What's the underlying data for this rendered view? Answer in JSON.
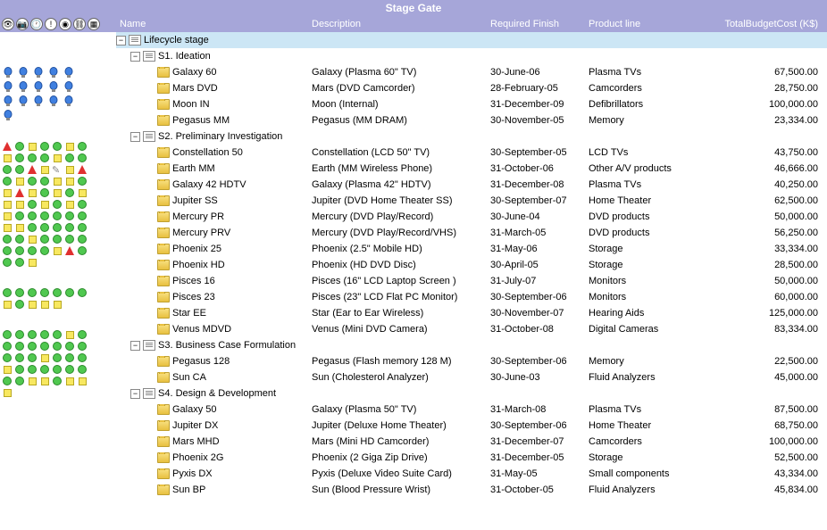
{
  "title": "Stage Gate",
  "columns": {
    "name": "Name",
    "description": "Description",
    "finish": "Required Finish",
    "line": "Product line",
    "budget": "TotalBudgetCost (K$)"
  },
  "tree": {
    "root": "Lifecycle stage",
    "stages": [
      {
        "name": "S1. Ideation",
        "items": [
          {
            "name": "Galaxy 60",
            "desc": "Galaxy (Plasma 60\" TV)",
            "finish": "30-June-06",
            "line": "Plasma TVs",
            "budget": "67,500.00"
          },
          {
            "name": "Mars DVD",
            "desc": "Mars (DVD Camcorder)",
            "finish": "28-February-05",
            "line": "Camcorders",
            "budget": "28,750.00"
          },
          {
            "name": "Moon IN",
            "desc": "Moon (Internal)",
            "finish": "31-December-09",
            "line": "Defibrillators",
            "budget": "100,000.00"
          },
          {
            "name": "Pegasus MM",
            "desc": "Pegasus (MM DRAM)",
            "finish": "30-November-05",
            "line": "Memory",
            "budget": "23,334.00"
          }
        ]
      },
      {
        "name": "S2. Preliminary Investigation",
        "items": [
          {
            "name": "Constellation 50",
            "desc": "Constellation (LCD 50\" TV)",
            "finish": "30-September-05",
            "line": "LCD TVs",
            "budget": "43,750.00"
          },
          {
            "name": "Earth MM",
            "desc": "Earth (MM Wireless Phone)",
            "finish": "31-October-06",
            "line": "Other A/V products",
            "budget": "46,666.00"
          },
          {
            "name": "Galaxy 42 HDTV",
            "desc": "Galaxy (Plasma 42\" HDTV)",
            "finish": "31-December-08",
            "line": "Plasma TVs",
            "budget": "40,250.00"
          },
          {
            "name": "Jupiter SS",
            "desc": "Jupiter (DVD Home Theater SS)",
            "finish": "30-September-07",
            "line": "Home Theater",
            "budget": "62,500.00"
          },
          {
            "name": "Mercury PR",
            "desc": "Mercury (DVD Play/Record)",
            "finish": "30-June-04",
            "line": "DVD products",
            "budget": "50,000.00"
          },
          {
            "name": "Mercury PRV",
            "desc": "Mercury (DVD Play/Record/VHS)",
            "finish": "31-March-05",
            "line": "DVD products",
            "budget": "56,250.00"
          },
          {
            "name": "Phoenix 25",
            "desc": "Phoenix (2.5\" Mobile HD)",
            "finish": "31-May-06",
            "line": "Storage",
            "budget": "33,334.00"
          },
          {
            "name": "Phoenix HD",
            "desc": "Phoenix (HD DVD Disc)",
            "finish": "30-April-05",
            "line": "Storage",
            "budget": "28,500.00"
          },
          {
            "name": "Pisces 16",
            "desc": "Pisces (16\" LCD Laptop Screen )",
            "finish": "31-July-07",
            "line": "Monitors",
            "budget": "50,000.00"
          },
          {
            "name": "Pisces 23",
            "desc": "Pisces (23\" LCD Flat PC Monitor)",
            "finish": "30-September-06",
            "line": "Monitors",
            "budget": "60,000.00"
          },
          {
            "name": "Star EE",
            "desc": "Star (Ear to Ear Wireless)",
            "finish": "30-November-07",
            "line": "Hearing Aids",
            "budget": "125,000.00"
          },
          {
            "name": "Venus MDVD",
            "desc": "Venus (Mini DVD Camera)",
            "finish": "31-October-08",
            "line": "Digital Cameras",
            "budget": "83,334.00"
          }
        ]
      },
      {
        "name": "S3. Business Case Formulation",
        "items": [
          {
            "name": "Pegasus 128",
            "desc": "Pegasus (Flash memory 128 M)",
            "finish": "30-September-06",
            "line": "Memory",
            "budget": "22,500.00"
          },
          {
            "name": "Sun CA",
            "desc": "Sun (Cholesterol Analyzer)",
            "finish": "30-June-03",
            "line": "Fluid Analyzers",
            "budget": "45,000.00"
          }
        ]
      },
      {
        "name": "S4. Design & Development",
        "items": [
          {
            "name": "Galaxy 50",
            "desc": "Galaxy (Plasma 50\" TV)",
            "finish": "31-March-08",
            "line": "Plasma TVs",
            "budget": "87,500.00"
          },
          {
            "name": "Jupiter DX",
            "desc": "Jupiter (Deluxe Home Theater)",
            "finish": "30-September-06",
            "line": "Home Theater",
            "budget": "68,750.00"
          },
          {
            "name": "Mars MHD",
            "desc": "Mars (Mini HD Camcorder)",
            "finish": "31-December-07",
            "line": "Camcorders",
            "budget": "100,000.00"
          },
          {
            "name": "Phoenix 2G",
            "desc": "Phoenix (2 Giga Zip Drive)",
            "finish": "31-December-05",
            "line": "Storage",
            "budget": "52,500.00"
          },
          {
            "name": "Pyxis DX",
            "desc": "Pyxis (Deluxe Video Suite Card)",
            "finish": "31-May-05",
            "line": "Small components",
            "budget": "43,334.00"
          },
          {
            "name": "Sun BP",
            "desc": "Sun (Blood Pressure Wrist)",
            "finish": "31-October-05",
            "line": "Fluid Analyzers",
            "budget": "45,834.00"
          }
        ]
      }
    ]
  },
  "left_panel": {
    "bulb_count": 16,
    "shape_grids": [
      {
        "pencil_row": 2,
        "rows": [
          [
            "r",
            "g",
            "y",
            "g",
            "g",
            "y"
          ],
          [
            "g",
            "y",
            "g",
            "g",
            "g",
            "y"
          ],
          [
            "g",
            "g",
            "g",
            "g",
            "r",
            "y"
          ],
          [
            "y",
            "r",
            "g",
            "y",
            "g",
            "g"
          ],
          [
            "y",
            "y",
            "g",
            "y",
            "r",
            "y"
          ],
          [
            "g",
            "y",
            "g",
            "y",
            "y",
            "y"
          ],
          [
            "g",
            "y",
            "g",
            "y",
            "g",
            "y"
          ],
          [
            "g",
            "g",
            "g",
            "g",
            "g",
            "g"
          ],
          [
            "y",
            "y",
            "g",
            "g",
            "g",
            "g"
          ],
          [
            "g",
            "g",
            "g",
            "y",
            "g",
            "g"
          ],
          [
            "g",
            "g",
            "g",
            "g",
            "g",
            "g"
          ],
          [
            "y",
            "r",
            "g",
            "g",
            "g",
            "y"
          ]
        ]
      },
      {
        "rows": [
          [
            "g",
            "g",
            "g",
            "g",
            "g",
            "g"
          ],
          [
            "g",
            "y",
            "g",
            "y",
            "y",
            "y"
          ]
        ]
      },
      {
        "rows": [
          [
            "g",
            "g",
            "g",
            "g",
            "g",
            "y"
          ],
          [
            "g",
            "g",
            "g",
            "g",
            "g",
            "g"
          ],
          [
            "g",
            "g",
            "g",
            "g",
            "g",
            "y"
          ],
          [
            "g",
            "g",
            "g",
            "y",
            "g",
            "g"
          ],
          [
            "g",
            "g",
            "g",
            "g",
            "g",
            "g"
          ],
          [
            "y",
            "y",
            "g",
            "y",
            "y",
            "y"
          ]
        ]
      }
    ]
  },
  "toolbar_icons": [
    "eye",
    "camera",
    "clock",
    "alert",
    "node",
    "link",
    "grid"
  ],
  "colors": {
    "header": "#a6a6d9",
    "root_row": "#cce6f5"
  }
}
